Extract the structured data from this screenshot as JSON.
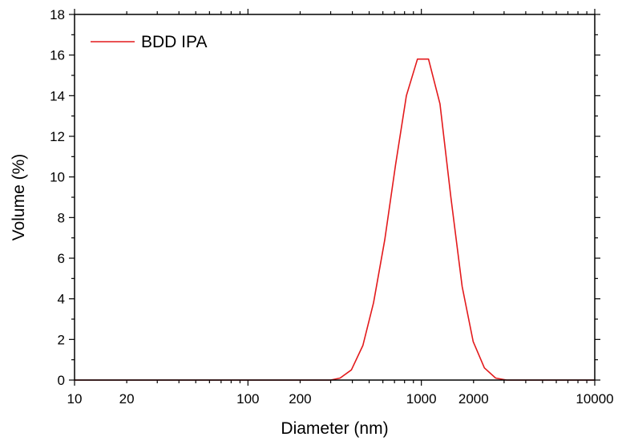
{
  "chart_data": {
    "type": "line",
    "title": "",
    "xlabel": "Diameter (nm)",
    "ylabel": "Volume (%)",
    "xscale": "log",
    "xlim": [
      10,
      10000
    ],
    "ylim": [
      0,
      18
    ],
    "grid": false,
    "legend_position": "top-left",
    "x_tick_labels": [
      "10",
      "20",
      "100",
      "200",
      "1000",
      "2000",
      "10000"
    ],
    "y_tick_labels": [
      "0",
      "2",
      "4",
      "6",
      "8",
      "10",
      "12",
      "14",
      "16",
      "18"
    ],
    "series": [
      {
        "name": "BDD IPA",
        "color": "#e31a1c",
        "points": [
          [
            10,
            0
          ],
          [
            50,
            0
          ],
          [
            100,
            0
          ],
          [
            200,
            0
          ],
          [
            300,
            0
          ],
          [
            340,
            0.1
          ],
          [
            395,
            0.5
          ],
          [
            460,
            1.7
          ],
          [
            530,
            3.8
          ],
          [
            615,
            6.9
          ],
          [
            710,
            10.6
          ],
          [
            820,
            14.0
          ],
          [
            950,
            15.8
          ],
          [
            1100,
            15.8
          ],
          [
            1280,
            13.6
          ],
          [
            1480,
            9.0
          ],
          [
            1720,
            4.6
          ],
          [
            1990,
            1.9
          ],
          [
            2310,
            0.6
          ],
          [
            2680,
            0.1
          ],
          [
            3100,
            0
          ],
          [
            5000,
            0
          ],
          [
            10000,
            0
          ]
        ]
      }
    ]
  }
}
